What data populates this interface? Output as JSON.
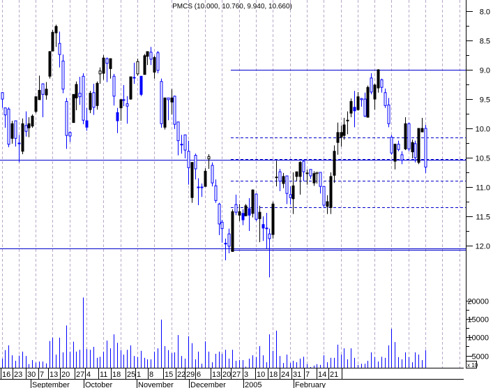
{
  "chart_data": {
    "type": "candlestick",
    "title": "PMCS (10.000, 10.760, 9.940, 10.660)",
    "price_axis": {
      "ticks": [
        "8.0",
        "8.5",
        "9.0",
        "9.5",
        "10.0",
        "10.5",
        "11.0",
        "11.5",
        "12.0"
      ],
      "range": [
        8.0,
        12.0
      ],
      "inverted": true,
      "position": "right"
    },
    "volume_axis": {
      "ticks": [
        "20000",
        "15000",
        "10000",
        "5000"
      ],
      "multiplier_label": "x 10",
      "range": [
        0,
        20000
      ]
    },
    "date_axis": {
      "day_labels": [
        "16",
        "23",
        "30",
        "7",
        "13",
        "20",
        "27",
        "4",
        "11",
        "18",
        "25",
        "1",
        "8",
        "15",
        "22",
        "29",
        "6",
        "13",
        "20",
        "27",
        "3",
        "10",
        "18",
        "24",
        "31",
        "7",
        "14",
        "21"
      ],
      "month_labels": [
        "September",
        "October",
        "November",
        "December",
        "2005",
        "February"
      ]
    },
    "grid": {
      "vertical_weekly": true,
      "horizontal": false
    },
    "colors": {
      "up_hollow": "#0000ff",
      "down_filled": "#000000",
      "blue_filled": "#0000ff",
      "lines": "#0000cc",
      "volume": "#0000ff",
      "grid": "#b8a8c8"
    },
    "candle_fields": [
      "open",
      "high",
      "low",
      "close",
      "style"
    ],
    "candles": [
      [
        9.39,
        9.65,
        9.38,
        9.5,
        "h"
      ],
      [
        9.65,
        9.99,
        9.65,
        9.77,
        "h"
      ],
      [
        9.67,
        10.32,
        9.64,
        10.27,
        "h"
      ],
      [
        10.17,
        10.26,
        9.87,
        9.92,
        "b"
      ],
      [
        9.87,
        10.31,
        9.87,
        10.17,
        "h"
      ],
      [
        10.25,
        10.58,
        10.11,
        10.26,
        "h"
      ],
      [
        10.39,
        10.44,
        9.83,
        9.92,
        "b"
      ],
      [
        9.95,
        10.14,
        9.71,
        10.05,
        "h"
      ],
      [
        9.99,
        10.15,
        9.81,
        9.92,
        "b"
      ],
      [
        9.96,
        9.99,
        9.76,
        9.79,
        "b"
      ],
      [
        9.71,
        9.74,
        9.45,
        9.46,
        "b"
      ],
      [
        9.51,
        9.51,
        9.1,
        9.35,
        "b"
      ],
      [
        9.24,
        9.81,
        9.23,
        9.42,
        "h"
      ],
      [
        9.43,
        9.51,
        9.21,
        9.33,
        "b"
      ],
      [
        9.11,
        9.15,
        8.68,
        8.69,
        "b"
      ],
      [
        8.68,
        8.68,
        8.32,
        8.36,
        "b"
      ],
      [
        8.37,
        8.61,
        8.23,
        8.26,
        "b"
      ],
      [
        8.55,
        8.96,
        8.35,
        8.74,
        "h"
      ],
      [
        8.85,
        9.4,
        8.74,
        9.33,
        "h"
      ],
      [
        9.54,
        10.35,
        9.48,
        10.12,
        "h"
      ],
      [
        10.07,
        10.23,
        10.05,
        10.13,
        "h"
      ],
      [
        9.9,
        9.9,
        9.42,
        9.42,
        "b"
      ],
      [
        9.48,
        9.69,
        9.2,
        9.25,
        "b"
      ],
      [
        9.4,
        9.6,
        9.12,
        9.46,
        "h"
      ],
      [
        9.11,
        9.93,
        9.06,
        9.86,
        "h"
      ],
      [
        9.87,
        10.04,
        9.65,
        9.98,
        "f"
      ],
      [
        9.68,
        9.74,
        9.36,
        9.4,
        "b"
      ],
      [
        9.39,
        9.77,
        9.24,
        9.64,
        "h"
      ],
      [
        9.61,
        9.68,
        9.2,
        9.23,
        "b"
      ],
      [
        9.02,
        9.24,
        8.96,
        9.07,
        "k"
      ],
      [
        9.06,
        9.17,
        8.75,
        8.8,
        "b"
      ],
      [
        8.81,
        9.21,
        8.79,
        8.89,
        "h"
      ],
      [
        8.98,
        9.15,
        8.81,
        8.81,
        "b"
      ],
      [
        9.11,
        9.61,
        9.07,
        9.45,
        "h"
      ],
      [
        9.73,
        10.08,
        9.65,
        9.87,
        "f"
      ],
      [
        9.65,
        9.87,
        9.5,
        9.51,
        "b"
      ],
      [
        9.51,
        9.62,
        9.26,
        9.52,
        "h"
      ],
      [
        9.58,
        9.92,
        9.45,
        9.62,
        "h"
      ],
      [
        9.5,
        9.51,
        9.12,
        9.12,
        "b"
      ],
      [
        9.13,
        9.24,
        8.88,
        9.14,
        "h"
      ],
      [
        8.86,
        9.1,
        8.81,
        9.07,
        "k"
      ],
      [
        9.11,
        9.45,
        9.11,
        9.42,
        "f"
      ],
      [
        9.08,
        9.08,
        8.73,
        8.76,
        "b"
      ],
      [
        8.77,
        8.92,
        8.69,
        8.69,
        "b"
      ],
      [
        8.7,
        8.92,
        8.61,
        8.82,
        "h"
      ],
      [
        9.04,
        9.15,
        8.76,
        8.79,
        "b"
      ],
      [
        8.71,
        9.06,
        8.68,
        9.01,
        "h"
      ],
      [
        9.2,
        9.99,
        9.15,
        9.92,
        "h"
      ],
      [
        9.98,
        10.02,
        9.48,
        9.48,
        "b"
      ],
      [
        9.48,
        9.86,
        9.48,
        9.51,
        "h"
      ],
      [
        9.55,
        9.76,
        9.33,
        9.48,
        "b"
      ],
      [
        9.45,
        10.01,
        9.44,
        9.93,
        "h"
      ],
      [
        9.89,
        10.46,
        9.89,
        10.21,
        "h"
      ],
      [
        10.27,
        10.43,
        10.11,
        10.28,
        "h"
      ],
      [
        10.11,
        10.51,
        10.11,
        10.37,
        "h"
      ],
      [
        10.39,
        10.96,
        10.21,
        10.67,
        "h"
      ],
      [
        11.18,
        11.27,
        10.58,
        10.58,
        "b"
      ],
      [
        10.46,
        10.87,
        10.43,
        10.69,
        "h"
      ],
      [
        11.0,
        11.31,
        10.85,
        11.01,
        "h"
      ],
      [
        11.0,
        11.17,
        10.94,
        11.01,
        "h"
      ],
      [
        10.99,
        10.99,
        10.68,
        10.73,
        "b"
      ],
      [
        10.48,
        10.69,
        10.44,
        10.52,
        "k"
      ],
      [
        10.63,
        10.99,
        10.58,
        10.93,
        "h"
      ],
      [
        10.98,
        11.27,
        10.87,
        11.23,
        "h"
      ],
      [
        11.29,
        11.82,
        11.27,
        11.63,
        "h"
      ],
      [
        11.6,
        11.95,
        11.56,
        11.71,
        "h"
      ],
      [
        11.96,
        12.25,
        11.88,
        11.97,
        "h"
      ],
      [
        11.8,
        12.13,
        11.71,
        12.01,
        "h"
      ],
      [
        12.1,
        12.1,
        11.38,
        11.42,
        "b"
      ],
      [
        11.3,
        11.48,
        11.13,
        11.43,
        "h"
      ],
      [
        11.48,
        11.58,
        11.29,
        11.42,
        "b"
      ],
      [
        11.45,
        11.65,
        11.38,
        11.56,
        "f"
      ],
      [
        11.49,
        11.5,
        11.29,
        11.32,
        "b"
      ],
      [
        11.37,
        11.75,
        11.19,
        11.48,
        "f"
      ],
      [
        11.45,
        11.52,
        11.04,
        11.05,
        "b"
      ],
      [
        11.12,
        11.58,
        11.11,
        11.55,
        "h"
      ],
      [
        11.54,
        11.94,
        11.32,
        11.43,
        "b"
      ],
      [
        11.64,
        11.92,
        11.5,
        11.7,
        "f"
      ],
      [
        11.7,
        12.05,
        11.44,
        11.71,
        "h"
      ],
      [
        11.8,
        12.54,
        11.71,
        11.88,
        "h"
      ],
      [
        11.81,
        11.88,
        11.25,
        11.29,
        "b"
      ],
      [
        10.83,
        10.99,
        10.55,
        10.84,
        "b"
      ],
      [
        10.74,
        11.07,
        10.69,
        10.9,
        "h"
      ],
      [
        10.94,
        11.02,
        10.76,
        10.82,
        "b"
      ],
      [
        10.81,
        11.29,
        10.81,
        11.11,
        "h"
      ],
      [
        11.13,
        11.3,
        10.99,
        11.18,
        "h"
      ],
      [
        11.2,
        11.46,
        10.75,
        10.98,
        "b"
      ],
      [
        10.82,
        10.9,
        10.74,
        10.74,
        "b"
      ],
      [
        10.82,
        11.13,
        10.56,
        10.58,
        "b"
      ],
      [
        10.56,
        10.9,
        10.54,
        10.74,
        "h"
      ],
      [
        10.76,
        10.96,
        10.7,
        10.77,
        "b"
      ],
      [
        10.7,
        10.86,
        10.7,
        10.81,
        "h"
      ],
      [
        10.93,
        10.98,
        10.73,
        10.77,
        "b"
      ],
      [
        10.75,
        10.94,
        10.75,
        10.77,
        "k"
      ],
      [
        10.75,
        11.11,
        10.75,
        10.99,
        "h"
      ],
      [
        10.99,
        11.36,
        10.99,
        11.31,
        "h"
      ],
      [
        11.33,
        11.46,
        11.14,
        11.25,
        "b"
      ],
      [
        11.35,
        11.46,
        10.75,
        10.82,
        "b"
      ],
      [
        10.8,
        10.93,
        10.29,
        10.39,
        "b"
      ],
      [
        10.24,
        10.45,
        9.9,
        10.07,
        "b"
      ],
      [
        10.15,
        10.31,
        9.95,
        10.07,
        "b"
      ],
      [
        10.12,
        10.19,
        9.82,
        9.94,
        "b"
      ],
      [
        9.86,
        10.1,
        9.71,
        9.87,
        "b"
      ],
      [
        9.74,
        9.81,
        9.49,
        9.54,
        "b"
      ],
      [
        9.64,
        9.98,
        9.36,
        9.7,
        "f"
      ],
      [
        9.68,
        9.7,
        9.38,
        9.46,
        "b"
      ],
      [
        9.49,
        9.63,
        9.48,
        9.51,
        "h"
      ],
      [
        9.5,
        9.81,
        9.39,
        9.79,
        "h"
      ],
      [
        9.81,
        9.81,
        9.27,
        9.3,
        "b"
      ],
      [
        9.14,
        9.42,
        9.06,
        9.38,
        "h"
      ],
      [
        9.5,
        9.68,
        9.24,
        9.26,
        "b"
      ],
      [
        9.31,
        9.39,
        8.99,
        9.0,
        "b"
      ],
      [
        9.17,
        9.39,
        9.15,
        9.3,
        "h"
      ],
      [
        9.39,
        9.65,
        9.32,
        9.61,
        "h"
      ],
      [
        9.6,
        9.98,
        9.48,
        9.92,
        "h"
      ],
      [
        10.15,
        10.45,
        10.11,
        10.42,
        "h"
      ],
      [
        10.56,
        10.7,
        10.26,
        10.27,
        "b"
      ],
      [
        10.27,
        10.39,
        10.21,
        10.36,
        "h"
      ],
      [
        10.45,
        10.61,
        10.39,
        10.54,
        "h"
      ],
      [
        10.35,
        10.37,
        9.81,
        9.92,
        "b"
      ],
      [
        9.92,
        10.39,
        9.9,
        10.35,
        "h"
      ],
      [
        10.4,
        10.51,
        10.19,
        10.24,
        "b"
      ],
      [
        10.26,
        10.58,
        10.21,
        10.5,
        "h"
      ],
      [
        10.58,
        10.61,
        10.0,
        10.0,
        "b"
      ],
      [
        10.06,
        10.06,
        9.82,
        10.0,
        "b"
      ],
      [
        10.0,
        10.76,
        9.94,
        10.66,
        "h"
      ]
    ],
    "volume": [
      4200,
      6500,
      7800,
      5100,
      3600,
      5000,
      6100,
      4900,
      2700,
      3800,
      3100,
      3400,
      3400,
      2900,
      9000,
      9900,
      5300,
      9900,
      5900,
      13200,
      6100,
      8800,
      6100,
      6600,
      20800,
      6800,
      6600,
      7400,
      4400,
      4700,
      6100,
      9100,
      7000,
      10800,
      8500,
      6500,
      5300,
      6600,
      7800,
      4900,
      4600,
      6300,
      4400,
      4000,
      4000,
      6100,
      7000,
      14800,
      7600,
      6500,
      5700,
      5900,
      10600,
      4900,
      4200,
      10300,
      8400,
      4000,
      6100,
      2800,
      8900,
      6100,
      3200,
      5500,
      6100,
      5500,
      6600,
      4200,
      6600,
      3600,
      3800,
      3800,
      2000,
      4200,
      5100,
      4600,
      7600,
      5100,
      3200,
      10800,
      6300,
      11800,
      4900,
      3000,
      5300,
      3000,
      3600,
      3200,
      4200,
      4700,
      2700,
      1900,
      2300,
      2700,
      2500,
      5100,
      3200,
      4400,
      4400,
      8000,
      5300,
      7000,
      4000,
      7000,
      4400,
      2500,
      2800,
      2800,
      3600,
      5900,
      4600,
      3400,
      4700,
      4400,
      7800,
      12300,
      8700,
      4600,
      4000,
      5900,
      4600,
      3200,
      5900,
      5300,
      3800,
      6500
    ],
    "levels": [
      {
        "price": 9.0,
        "style": "solid",
        "from_candle": 68
      },
      {
        "price": 10.54,
        "style": "solid",
        "from_candle": 0
      },
      {
        "price": 12.05,
        "style": "solid",
        "from_candle": 0
      },
      {
        "price": 12.07,
        "style": "solid",
        "from_candle": 68
      },
      {
        "price": 10.15,
        "style": "dashed",
        "from_candle": 68
      },
      {
        "price": 10.52,
        "style": "dashed",
        "from_candle": 68
      },
      {
        "price": 10.89,
        "style": "dashed",
        "from_candle": 68
      },
      {
        "price": 11.35,
        "style": "dashed",
        "from_candle": 68
      }
    ]
  }
}
